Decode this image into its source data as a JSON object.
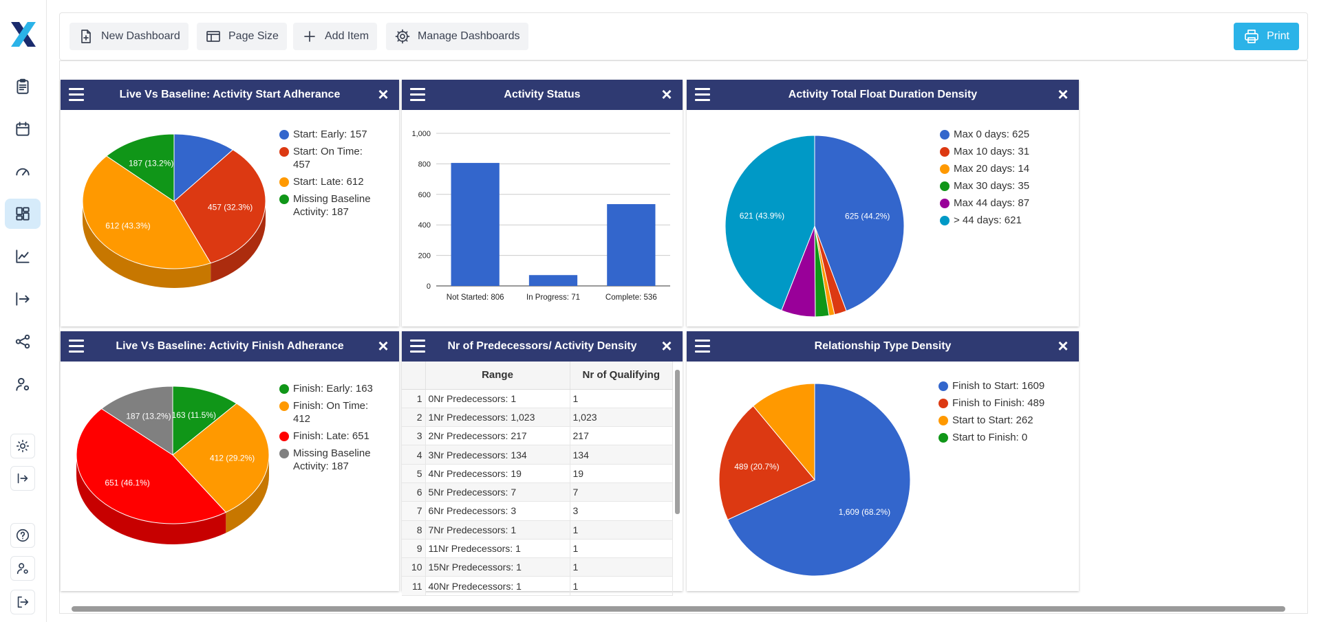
{
  "toolbar": {
    "new_dashboard": "New Dashboard",
    "page_size": "Page Size",
    "add_item": "Add Item",
    "manage_dashboards": "Manage Dashboards",
    "print": "Print"
  },
  "panels": {
    "start_adherence": {
      "title": "Live Vs Baseline: Activity Start Adherance",
      "legend": [
        "Start: Early: 157",
        "Start: On Time: 457",
        "Start: Late: 612",
        "Missing Baseline Activity: 187"
      ]
    },
    "activity_status": {
      "title": "Activity Status"
    },
    "float_density": {
      "title": "Activity Total Float Duration Density",
      "legend": [
        "Max 0 days: 625",
        "Max 10 days: 31",
        "Max 20 days: 14",
        "Max 30 days: 35",
        "Max 44 days: 87",
        "> 44 days: 621"
      ]
    },
    "finish_adherence": {
      "title": "Live Vs Baseline: Activity Finish Adherance",
      "legend": [
        "Finish: Early: 163",
        "Finish: On Time: 412",
        "Finish: Late: 651",
        "Missing Baseline Activity: 187"
      ]
    },
    "predecessors": {
      "title": "Nr of Predecessors/ Activity Density",
      "columns": [
        "Range",
        "Nr of Qualifying"
      ],
      "rows": [
        [
          "1",
          "0Nr Predecessors: 1",
          "1"
        ],
        [
          "2",
          "1Nr Predecessors: 1,023",
          "1,023"
        ],
        [
          "3",
          "2Nr Predecessors: 217",
          "217"
        ],
        [
          "4",
          "3Nr Predecessors: 134",
          "134"
        ],
        [
          "5",
          "4Nr Predecessors: 19",
          "19"
        ],
        [
          "6",
          "5Nr Predecessors: 7",
          "7"
        ],
        [
          "7",
          "6Nr Predecessors: 3",
          "3"
        ],
        [
          "8",
          "7Nr Predecessors: 1",
          "1"
        ],
        [
          "9",
          "11Nr Predecessors: 1",
          "1"
        ],
        [
          "10",
          "15Nr Predecessors: 1",
          "1"
        ],
        [
          "11",
          "40Nr Predecessors: 1",
          "1"
        ]
      ]
    },
    "relationship": {
      "title": "Relationship Type Density",
      "legend": [
        "Finish to Start: 1609",
        "Finish to Finish: 489",
        "Start to Start: 262",
        "Start to Finish: 0"
      ]
    }
  },
  "chart_data": [
    {
      "type": "pie",
      "categories": [
        "Start: Early",
        "Start: On Time",
        "Start: Late",
        "Missing Baseline Activity"
      ],
      "values": [
        157,
        457,
        612,
        187
      ],
      "labels": [
        "",
        "457 (32.3%)",
        "612 (43.3%)",
        "187 (13.2%)"
      ],
      "colors": [
        "#3366cc",
        "#dc3912",
        "#ff9900",
        "#109618"
      ],
      "legend": "right"
    },
    {
      "type": "bar",
      "categories": [
        "Not Started: 806",
        "In Progress: 71",
        "Complete: 536"
      ],
      "values": [
        806,
        71,
        536
      ],
      "ylim": [
        0,
        1000
      ],
      "yticks": [
        "0",
        "200",
        "400",
        "600",
        "800",
        "1,000"
      ],
      "color": "#3366cc",
      "grid": true
    },
    {
      "type": "pie",
      "categories": [
        "Max 0 days",
        "Max 10 days",
        "Max 20 days",
        "Max 30 days",
        "Max 44 days",
        "> 44 days"
      ],
      "values": [
        625,
        31,
        14,
        35,
        87,
        621
      ],
      "labels": [
        "625 (44.2%)",
        "",
        "",
        "",
        "",
        "621 (43.9%)"
      ],
      "colors": [
        "#3366cc",
        "#dc3912",
        "#ff9900",
        "#109618",
        "#990099",
        "#0099c6"
      ],
      "legend": "right"
    },
    {
      "type": "pie",
      "categories": [
        "Finish: Early",
        "Finish: On Time",
        "Finish: Late",
        "Missing Baseline Activity"
      ],
      "values": [
        163,
        412,
        651,
        187
      ],
      "labels": [
        "163 (11.5%)",
        "412 (29.2%)",
        "651 (46.1%)",
        "187 (13.2%)"
      ],
      "colors": [
        "#109618",
        "#ff9900",
        "#ff0000",
        "#808080"
      ],
      "legend": "right"
    },
    {
      "type": "pie",
      "categories": [
        "Finish to Start",
        "Finish to Finish",
        "Start to Start",
        "Start to Finish"
      ],
      "values": [
        1609,
        489,
        262,
        0
      ],
      "labels": [
        "1,609 (68.2%)",
        "489 (20.7%)",
        "",
        ""
      ],
      "colors": [
        "#3366cc",
        "#dc3912",
        "#ff9900",
        "#109618"
      ],
      "legend": "right"
    }
  ]
}
